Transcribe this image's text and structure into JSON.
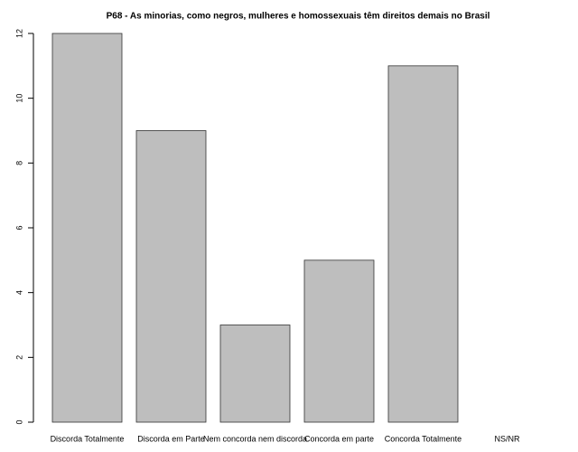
{
  "chart_data": {
    "type": "bar",
    "title": "P68 - As minorias, como negros, mulheres e homossexuais têm direitos demais no Brasil",
    "categories": [
      "Discorda Totalmente",
      "Discorda em Parte",
      "Nem concorda nem discorda",
      "Concorda em parte",
      "Concorda Totalmente",
      "NS/NR"
    ],
    "values": [
      12,
      9,
      3,
      5,
      11,
      0
    ],
    "color": "#bebebe",
    "ylim": [
      0,
      12
    ],
    "yticks": [
      0,
      2,
      4,
      6,
      8,
      10,
      12
    ]
  }
}
